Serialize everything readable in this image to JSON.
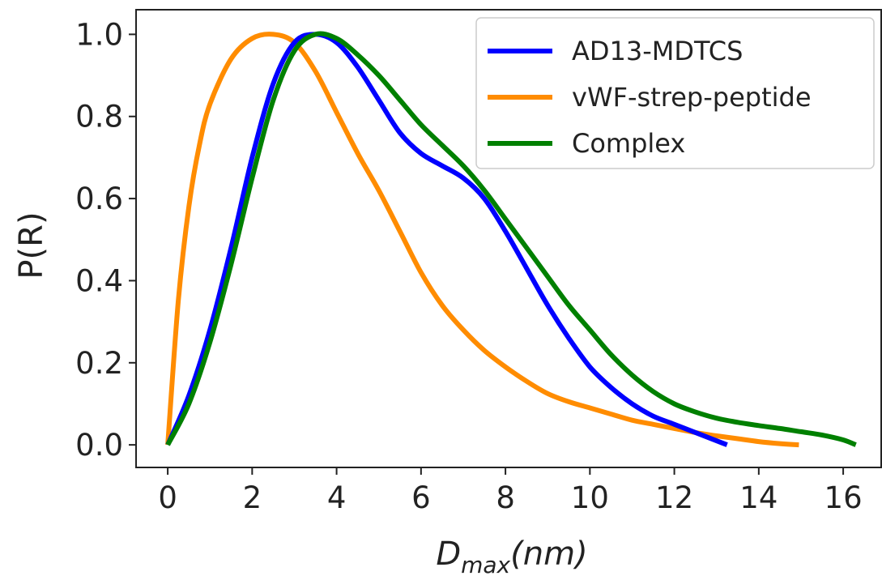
{
  "chart_data": {
    "type": "line",
    "xlabel": {
      "main": "D",
      "sub": "max",
      "unit": "(nm)"
    },
    "ylabel": "P(R)",
    "xlim": [
      -0.75,
      16.9
    ],
    "ylim": [
      -0.055,
      1.06
    ],
    "xticks": [
      0,
      2,
      4,
      6,
      8,
      10,
      12,
      14,
      16
    ],
    "yticks": [
      0.0,
      0.2,
      0.4,
      0.6,
      0.8,
      1.0
    ],
    "xtick_labels": [
      "0",
      "2",
      "4",
      "6",
      "8",
      "10",
      "12",
      "14",
      "16"
    ],
    "ytick_labels": [
      "0.0",
      "0.2",
      "0.4",
      "0.6",
      "0.8",
      "1.0"
    ],
    "grid": false,
    "legend_position": "top-right",
    "series": [
      {
        "name": "AD13-MDTCS",
        "color": "#0000ff",
        "x": [
          0,
          0.5,
          1.0,
          1.5,
          2.0,
          2.5,
          3.0,
          3.5,
          4.0,
          4.5,
          5.0,
          5.5,
          6.0,
          6.5,
          7.0,
          7.5,
          8.0,
          8.5,
          9.0,
          9.5,
          10.0,
          10.5,
          11.0,
          11.5,
          12.0,
          12.5,
          13.0,
          13.25
        ],
        "y": [
          0.0,
          0.12,
          0.28,
          0.48,
          0.7,
          0.88,
          0.98,
          1.0,
          0.98,
          0.92,
          0.84,
          0.76,
          0.71,
          0.68,
          0.65,
          0.6,
          0.52,
          0.43,
          0.34,
          0.26,
          0.19,
          0.14,
          0.1,
          0.07,
          0.05,
          0.03,
          0.01,
          0.0
        ]
      },
      {
        "name": "vWF-strep-peptide",
        "color": "#ff8c00",
        "x": [
          0,
          0.25,
          0.5,
          0.75,
          1.0,
          1.5,
          2.0,
          2.5,
          3.0,
          3.5,
          4.0,
          4.5,
          5.0,
          5.5,
          6.0,
          6.5,
          7.0,
          7.5,
          8.0,
          8.5,
          9.0,
          9.5,
          10.0,
          10.5,
          11.0,
          11.5,
          12.0,
          12.5,
          13.0,
          13.5,
          14.0,
          14.5,
          14.95
        ],
        "y": [
          0.0,
          0.35,
          0.58,
          0.73,
          0.83,
          0.94,
          0.99,
          1.0,
          0.98,
          0.91,
          0.81,
          0.71,
          0.62,
          0.52,
          0.42,
          0.34,
          0.28,
          0.23,
          0.19,
          0.155,
          0.125,
          0.105,
          0.09,
          0.075,
          0.06,
          0.05,
          0.04,
          0.03,
          0.022,
          0.015,
          0.008,
          0.003,
          0.0
        ]
      },
      {
        "name": "Complex",
        "color": "#008000",
        "x": [
          0,
          0.5,
          1.0,
          1.5,
          2.0,
          2.5,
          3.0,
          3.5,
          4.0,
          4.5,
          5.0,
          5.5,
          6.0,
          6.5,
          7.0,
          7.5,
          8.0,
          8.5,
          9.0,
          9.5,
          10.0,
          10.5,
          11.0,
          11.5,
          12.0,
          12.5,
          13.0,
          13.5,
          14.0,
          14.5,
          15.0,
          15.5,
          16.0,
          16.3
        ],
        "y": [
          0.0,
          0.1,
          0.25,
          0.44,
          0.65,
          0.84,
          0.96,
          1.0,
          0.99,
          0.95,
          0.9,
          0.84,
          0.78,
          0.73,
          0.68,
          0.62,
          0.55,
          0.48,
          0.41,
          0.34,
          0.28,
          0.22,
          0.17,
          0.13,
          0.1,
          0.08,
          0.065,
          0.055,
          0.047,
          0.04,
          0.032,
          0.024,
          0.012,
          0.0
        ]
      }
    ]
  }
}
